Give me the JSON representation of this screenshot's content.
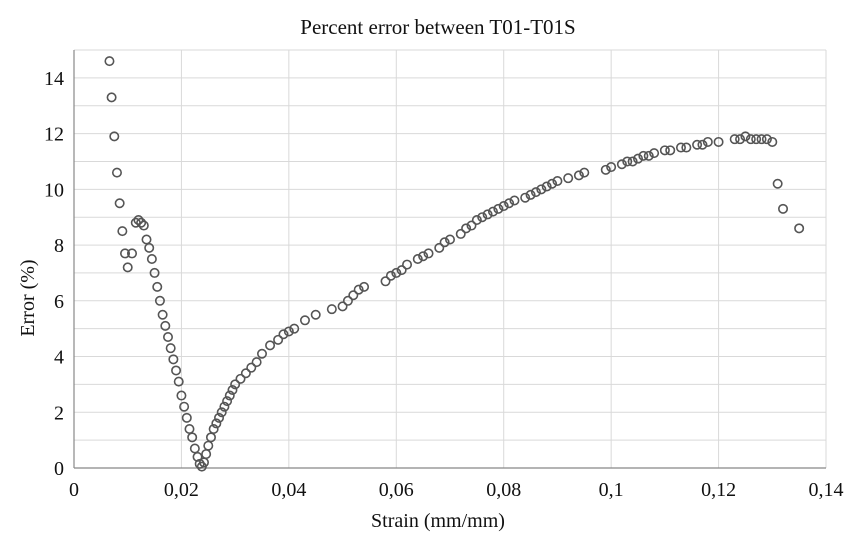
{
  "chart_data": {
    "type": "scatter",
    "title": "Percent error between T01-T01S",
    "xlabel": "Strain (mm/mm)",
    "ylabel": "Error (%)",
    "xlim": [
      0,
      0.14
    ],
    "ylim": [
      0,
      15
    ],
    "x_ticks": [
      0,
      0.02,
      0.04,
      0.06,
      0.08,
      0.1,
      0.12,
      0.14
    ],
    "x_tick_labels": [
      "0",
      "0,02",
      "0,04",
      "0,06",
      "0,08",
      "0,1",
      "0,12",
      "0,14"
    ],
    "y_ticks": [
      0,
      2,
      4,
      6,
      8,
      10,
      12,
      14
    ],
    "y_tick_labels": [
      "0",
      "2",
      "4",
      "6",
      "8",
      "10",
      "12",
      "14"
    ],
    "grid": true,
    "marker": "hollow-circle",
    "marker_color": "#555555",
    "grid_color": "#d9d9d9",
    "x": [
      0.0066,
      0.007,
      0.0075,
      0.008,
      0.0085,
      0.009,
      0.0095,
      0.01,
      0.0108,
      0.0115,
      0.012,
      0.0125,
      0.013,
      0.0135,
      0.014,
      0.0145,
      0.015,
      0.0155,
      0.016,
      0.0165,
      0.017,
      0.0175,
      0.018,
      0.0185,
      0.019,
      0.0195,
      0.02,
      0.0205,
      0.021,
      0.0215,
      0.022,
      0.0225,
      0.023,
      0.0234,
      0.0238,
      0.0242,
      0.0246,
      0.025,
      0.0255,
      0.026,
      0.0265,
      0.027,
      0.0275,
      0.028,
      0.0285,
      0.029,
      0.0295,
      0.03,
      0.031,
      0.032,
      0.033,
      0.034,
      0.035,
      0.0365,
      0.038,
      0.039,
      0.04,
      0.041,
      0.043,
      0.045,
      0.048,
      0.05,
      0.051,
      0.052,
      0.053,
      0.054,
      0.058,
      0.059,
      0.06,
      0.061,
      0.062,
      0.064,
      0.065,
      0.066,
      0.068,
      0.069,
      0.07,
      0.072,
      0.073,
      0.074,
      0.075,
      0.076,
      0.077,
      0.078,
      0.079,
      0.08,
      0.081,
      0.082,
      0.084,
      0.085,
      0.086,
      0.087,
      0.088,
      0.089,
      0.09,
      0.092,
      0.094,
      0.095,
      0.099,
      0.1,
      0.102,
      0.103,
      0.104,
      0.105,
      0.106,
      0.107,
      0.108,
      0.11,
      0.111,
      0.113,
      0.114,
      0.116,
      0.117,
      0.118,
      0.12,
      0.123,
      0.124,
      0.125,
      0.126,
      0.127,
      0.128,
      0.129,
      0.13,
      0.131,
      0.132,
      0.135
    ],
    "y": [
      14.6,
      13.3,
      11.9,
      10.6,
      9.5,
      8.5,
      7.7,
      7.2,
      7.7,
      8.8,
      8.9,
      8.8,
      8.7,
      8.2,
      7.9,
      7.5,
      7.0,
      6.5,
      6.0,
      5.5,
      5.1,
      4.7,
      4.3,
      3.9,
      3.5,
      3.1,
      2.6,
      2.2,
      1.8,
      1.4,
      1.1,
      0.7,
      0.4,
      0.15,
      0.05,
      0.2,
      0.5,
      0.8,
      1.1,
      1.4,
      1.6,
      1.8,
      2.0,
      2.2,
      2.4,
      2.6,
      2.8,
      3.0,
      3.2,
      3.4,
      3.6,
      3.8,
      4.1,
      4.4,
      4.6,
      4.8,
      4.9,
      5.0,
      5.3,
      5.5,
      5.7,
      5.8,
      6.0,
      6.2,
      6.4,
      6.5,
      6.7,
      6.9,
      7.0,
      7.1,
      7.3,
      7.5,
      7.6,
      7.7,
      7.9,
      8.1,
      8.2,
      8.4,
      8.6,
      8.7,
      8.9,
      9.0,
      9.1,
      9.2,
      9.3,
      9.4,
      9.5,
      9.6,
      9.7,
      9.8,
      9.9,
      10.0,
      10.1,
      10.2,
      10.3,
      10.4,
      10.5,
      10.6,
      10.7,
      10.8,
      10.9,
      11.0,
      11.0,
      11.1,
      11.2,
      11.2,
      11.3,
      11.4,
      11.4,
      11.5,
      11.5,
      11.6,
      11.6,
      11.7,
      11.7,
      11.8,
      11.8,
      11.9,
      11.8,
      11.8,
      11.8,
      11.8,
      11.7,
      10.2,
      9.3,
      8.6
    ]
  }
}
